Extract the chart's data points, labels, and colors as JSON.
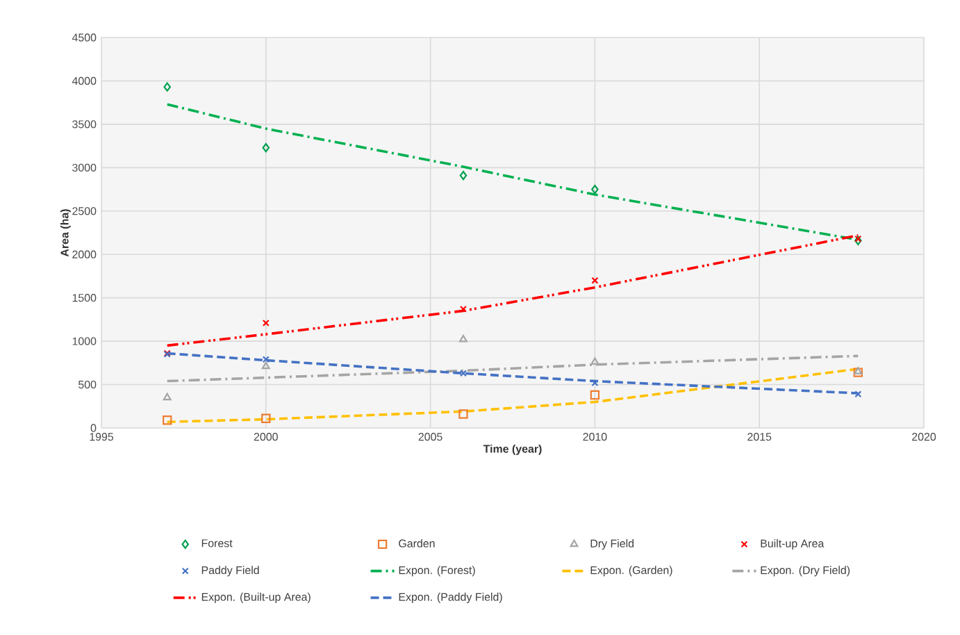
{
  "chart_data": {
    "type": "scatter",
    "xlabel": "Time (year)",
    "ylabel": "Area (ha)",
    "xlim": [
      1995,
      2020
    ],
    "xticks": [
      1995,
      2000,
      2005,
      2010,
      2015,
      2020
    ],
    "ylim": [
      0,
      4500
    ],
    "yticks": [
      0,
      500,
      1000,
      1500,
      2000,
      2500,
      3000,
      3500,
      4000,
      4500
    ],
    "grid": true,
    "legend": "bottom",
    "series": [
      {
        "name": "Forest",
        "marker": "diamond",
        "color": "#00a050",
        "x": [
          1997,
          2000,
          2006,
          2010,
          2018
        ],
        "values": [
          3930,
          3230,
          2910,
          2750,
          2160
        ]
      },
      {
        "name": "Garden",
        "marker": "square",
        "color": "#ed7d31",
        "x": [
          1997,
          2000,
          2006,
          2010,
          2018
        ],
        "values": [
          90,
          110,
          160,
          380,
          640
        ]
      },
      {
        "name": "Dry Field",
        "marker": "triangle",
        "color": "#a5a5a5",
        "x": [
          1997,
          2000,
          2006,
          2010,
          2018
        ],
        "values": [
          350,
          710,
          1020,
          760,
          650
        ]
      },
      {
        "name": "Built-up Area",
        "marker": "cross",
        "color": "#ff0000",
        "x": [
          1997,
          2000,
          2006,
          2010,
          2018
        ],
        "values": [
          860,
          1210,
          1370,
          1700,
          2180
        ]
      },
      {
        "name": "Paddy Field",
        "marker": "cross",
        "color": "#4472c4",
        "x": [
          1997,
          2000,
          2006,
          2010,
          2018
        ],
        "values": [
          850,
          790,
          630,
          520,
          390
        ]
      },
      {
        "name": "Expon. (Forest)",
        "type": "line",
        "line_style": "dashdot",
        "color": "#00b050",
        "x": [
          1997,
          2000,
          2006,
          2010,
          2018
        ],
        "values": [
          3730,
          3450,
          3010,
          2690,
          2170
        ]
      },
      {
        "name": "Expon. (Garden)",
        "type": "line",
        "line_style": "dashed",
        "color": "#ffc000",
        "x": [
          1997,
          2000,
          2006,
          2010,
          2018
        ],
        "values": [
          70,
          100,
          190,
          300,
          680
        ]
      },
      {
        "name": "Expon. (Dry Field)",
        "type": "line",
        "line_style": "dashdot",
        "color": "#a5a5a5",
        "x": [
          1997,
          2000,
          2006,
          2010,
          2018
        ],
        "values": [
          540,
          580,
          660,
          730,
          830
        ]
      },
      {
        "name": "Expon. (Built-up Area)",
        "type": "line",
        "line_style": "dashdotdot",
        "color": "#ff0000",
        "x": [
          1997,
          2000,
          2006,
          2010,
          2018
        ],
        "values": [
          950,
          1080,
          1350,
          1620,
          2220
        ]
      },
      {
        "name": "Expon. (Paddy Field)",
        "type": "line",
        "line_style": "dashed",
        "color": "#4472c4",
        "x": [
          1997,
          2000,
          2006,
          2010,
          2018
        ],
        "values": [
          860,
          780,
          630,
          540,
          400
        ]
      }
    ]
  }
}
